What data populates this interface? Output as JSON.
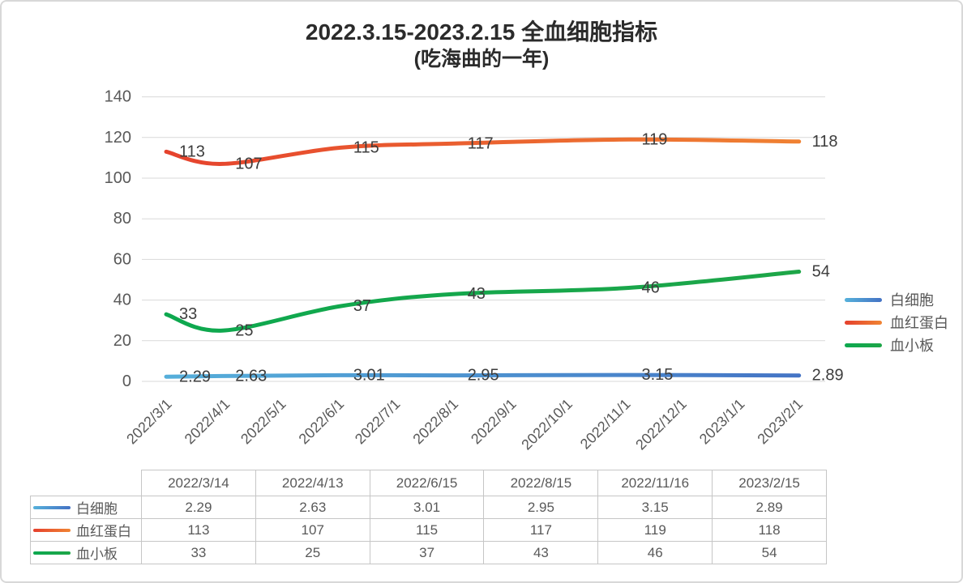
{
  "title": "2022.3.15-2023.2.15 全血细胞指标",
  "subtitle": "(吃海曲的一年)",
  "chart_data": {
    "type": "line",
    "title": "2022.3.15-2023.2.15 全血细胞指标",
    "subtitle": "(吃海曲的一年)",
    "smooth": true,
    "grid": true,
    "legend_position": "right",
    "data_label_position": "right",
    "x_axis": {
      "type": "date",
      "range": [
        "2022/3/1",
        "2023/3/1"
      ],
      "tick_labels": [
        "2022/3/1",
        "2022/4/1",
        "2022/5/1",
        "2022/6/1",
        "2022/7/1",
        "2022/8/1",
        "2022/9/1",
        "2022/10/1",
        "2022/11/1",
        "2022/12/1",
        "2023/1/1",
        "2023/2/1"
      ]
    },
    "y_axis": {
      "min": 0,
      "max": 140,
      "ticks": [
        0,
        20,
        40,
        60,
        80,
        100,
        120,
        140
      ]
    },
    "x_dates": [
      "2022/3/14",
      "2022/4/13",
      "2022/6/15",
      "2022/8/15",
      "2022/11/16",
      "2023/2/15"
    ],
    "series": [
      {
        "name": "白细胞",
        "values": [
          2.29,
          2.63,
          3.01,
          2.95,
          3.15,
          2.89
        ],
        "color_start": "#56B1DB",
        "color_end": "#4472C4"
      },
      {
        "name": "血红蛋白",
        "values": [
          113,
          107,
          115,
          117,
          119,
          118
        ],
        "color_start": "#E5402D",
        "color_end": "#F08433"
      },
      {
        "name": "血小板",
        "values": [
          33,
          25,
          37,
          43,
          46,
          54
        ],
        "color_start": "#0DA84F",
        "color_end": "#1EA648"
      }
    ]
  },
  "table": {
    "col_headers": [
      "2022/3/14",
      "2022/4/13",
      "2022/6/15",
      "2022/8/15",
      "2022/11/16",
      "2023/2/15"
    ],
    "rows": [
      {
        "label": "白细胞",
        "values": [
          "2.29",
          "2.63",
          "3.01",
          "2.95",
          "3.15",
          "2.89"
        ]
      },
      {
        "label": "血红蛋白",
        "values": [
          "113",
          "107",
          "115",
          "117",
          "119",
          "118"
        ]
      },
      {
        "label": "血小板",
        "values": [
          "33",
          "25",
          "37",
          "43",
          "46",
          "54"
        ]
      }
    ]
  },
  "colors": {
    "grid_line": "#D9D9D9",
    "tick_text": "#595959",
    "data_label_text": "#3D3D3D",
    "table_border": "#C6C6C6",
    "frame_border": "#D8D8D8"
  }
}
